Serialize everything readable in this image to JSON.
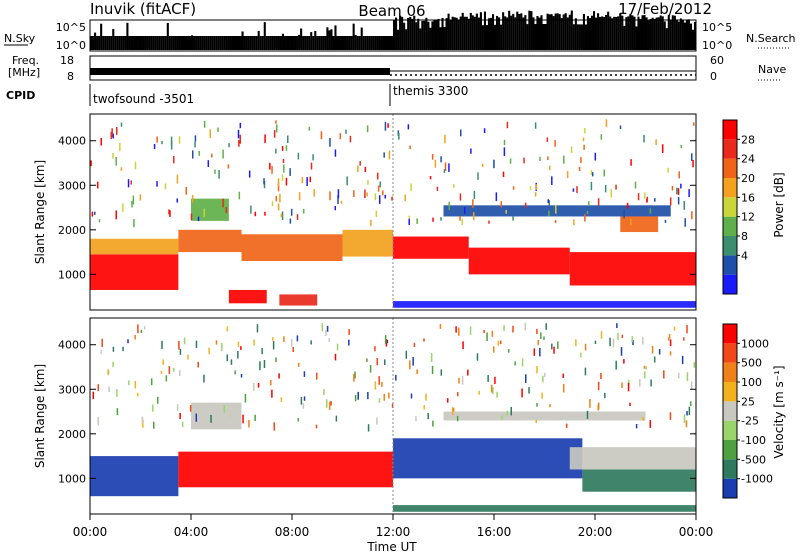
{
  "header": {
    "station": "Inuvik (fitACF)",
    "beam": "Beam 06",
    "date": "17/Feb/2012"
  },
  "top_panels": {
    "nsky_label": "N.Sky",
    "nsky_ticks": [
      "10^5",
      "10^0"
    ],
    "nsearch_label": "N.Search",
    "nsearch_ticks": [
      "10^5",
      "10^0"
    ],
    "freq_label_line1": "Freq.",
    "freq_label_line2": "[MHz]",
    "freq_ticks": [
      "18",
      "8"
    ],
    "nave_label": "Nave",
    "nave_ticks": [
      "60",
      "0"
    ],
    "cpid_label": "CPID",
    "cpid_segments": [
      {
        "label": "twofsound -3501",
        "start_hour": 0,
        "end_hour": 12
      },
      {
        "label": "themis 3300",
        "start_hour": 12,
        "end_hour": 24
      }
    ]
  },
  "chart_data": [
    {
      "type": "heatmap",
      "panel": "power",
      "ylabel": "Slant Range [km]",
      "yticks": [
        "1000",
        "2000",
        "3000",
        "4000"
      ],
      "ylim": [
        200,
        4600
      ],
      "xlim": [
        0,
        24
      ],
      "colorbar_label": "Power [dB]",
      "colorbar_ticks": [
        "28",
        "24",
        "20",
        "16",
        "12",
        "8",
        "4"
      ],
      "colorbar_colors": [
        "#1a1aff",
        "#1f4fa8",
        "#3b8f6e",
        "#5fb04a",
        "#c8d63a",
        "#f2a21e",
        "#f06418",
        "#e8291c",
        "#ff0000"
      ],
      "bands": [
        {
          "start_hour": 0.0,
          "end_hour": 3.5,
          "range_min": 650,
          "range_max": 1450,
          "value": 30
        },
        {
          "start_hour": 0.0,
          "end_hour": 3.5,
          "range_min": 1450,
          "range_max": 1800,
          "value": 18
        },
        {
          "start_hour": 3.5,
          "end_hour": 6.0,
          "range_min": 1500,
          "range_max": 2000,
          "value": 22
        },
        {
          "start_hour": 4.0,
          "end_hour": 5.5,
          "range_min": 2200,
          "range_max": 2700,
          "value": 14
        },
        {
          "start_hour": 6.0,
          "end_hour": 10.0,
          "range_min": 1300,
          "range_max": 1900,
          "value": 20
        },
        {
          "start_hour": 5.5,
          "end_hour": 7.0,
          "range_min": 350,
          "range_max": 650,
          "value": 26
        },
        {
          "start_hour": 7.5,
          "end_hour": 9.0,
          "range_min": 300,
          "range_max": 550,
          "value": 24
        },
        {
          "start_hour": 10.0,
          "end_hour": 12.0,
          "range_min": 1400,
          "range_max": 2000,
          "value": 18
        },
        {
          "start_hour": 12.0,
          "end_hour": 15.0,
          "range_min": 1350,
          "range_max": 1850,
          "value": 26
        },
        {
          "start_hour": 15.0,
          "end_hour": 19.0,
          "range_min": 1000,
          "range_max": 1600,
          "value": 26
        },
        {
          "start_hour": 19.0,
          "end_hour": 24.0,
          "range_min": 750,
          "range_max": 1500,
          "value": 28
        },
        {
          "start_hour": 14.0,
          "end_hour": 23.0,
          "range_min": 2300,
          "range_max": 2550,
          "value": 8
        },
        {
          "start_hour": 21.0,
          "end_hour": 22.5,
          "range_min": 1950,
          "range_max": 2300,
          "value": 22
        },
        {
          "start_hour": 12.0,
          "end_hour": 24.0,
          "range_min": 250,
          "range_max": 400,
          "value": 6
        }
      ]
    },
    {
      "type": "heatmap",
      "panel": "velocity",
      "ylabel": "Slant Range [km]",
      "yticks": [
        "1000",
        "2000",
        "3000",
        "4000"
      ],
      "ylim": [
        200,
        4600
      ],
      "xlim": [
        0,
        24
      ],
      "xlabel": "Time UT",
      "xticks": [
        "00:00",
        "04:00",
        "08:00",
        "12:00",
        "16:00",
        "20:00",
        "00:00"
      ],
      "colorbar_label": "Velocity [m s⁻¹]",
      "colorbar_ticks": [
        "1000",
        "500",
        "100",
        "25",
        "-25",
        "-100",
        "-500",
        "-1000"
      ],
      "colorbar_colors": [
        "#1a3db0",
        "#2f7a5e",
        "#4ea040",
        "#9ad46a",
        "#c8c8c0",
        "#f2b21e",
        "#f08018",
        "#f04818",
        "#ff0000"
      ],
      "bands": [
        {
          "start_hour": 0.0,
          "end_hour": 3.5,
          "range_min": 600,
          "range_max": 1500,
          "value": -300
        },
        {
          "start_hour": 3.5,
          "end_hour": 12.0,
          "range_min": 800,
          "range_max": 1600,
          "value": 400
        },
        {
          "start_hour": 4.0,
          "end_hour": 6.0,
          "range_min": 2100,
          "range_max": 2700,
          "value": 0
        },
        {
          "start_hour": 12.0,
          "end_hour": 19.5,
          "range_min": 1000,
          "range_max": 1900,
          "value": -400
        },
        {
          "start_hour": 19.5,
          "end_hour": 24.0,
          "range_min": 700,
          "range_max": 1200,
          "value": -200
        },
        {
          "start_hour": 19.0,
          "end_hour": 24.0,
          "range_min": 1200,
          "range_max": 1700,
          "value": 0
        },
        {
          "start_hour": 14.0,
          "end_hour": 22.0,
          "range_min": 2300,
          "range_max": 2500,
          "value": 0
        },
        {
          "start_hour": 12.0,
          "end_hour": 24.0,
          "range_min": 250,
          "range_max": 400,
          "value": -150
        }
      ]
    }
  ]
}
